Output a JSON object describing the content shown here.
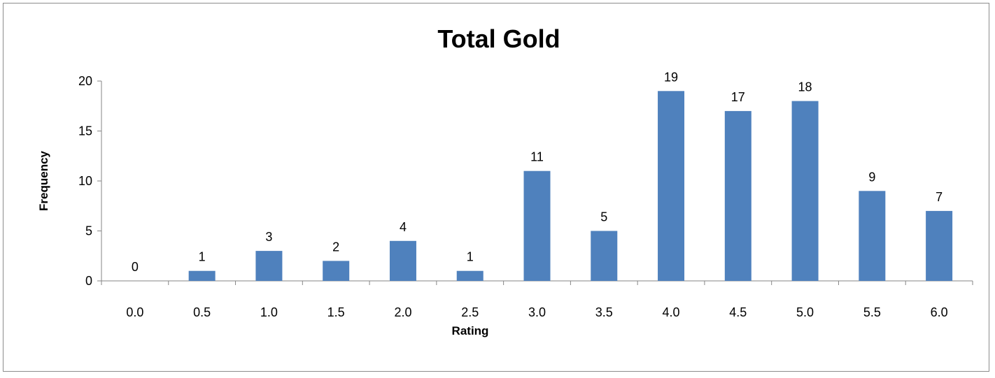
{
  "chart_data": {
    "type": "bar",
    "title": "Total Gold",
    "xlabel": "Rating",
    "ylabel": "Frequency",
    "categories": [
      "0.0",
      "0.5",
      "1.0",
      "1.5",
      "2.0",
      "2.5",
      "3.0",
      "3.5",
      "4.0",
      "4.5",
      "5.0",
      "5.5",
      "6.0"
    ],
    "values": [
      0,
      1,
      3,
      2,
      4,
      1,
      11,
      5,
      19,
      17,
      18,
      9,
      7
    ],
    "ylim": [
      0,
      20
    ],
    "yticks": [
      0,
      5,
      10,
      15,
      20
    ],
    "grid": false,
    "legend": "none",
    "bar_color": "#4F81BD",
    "data_labels": true
  }
}
